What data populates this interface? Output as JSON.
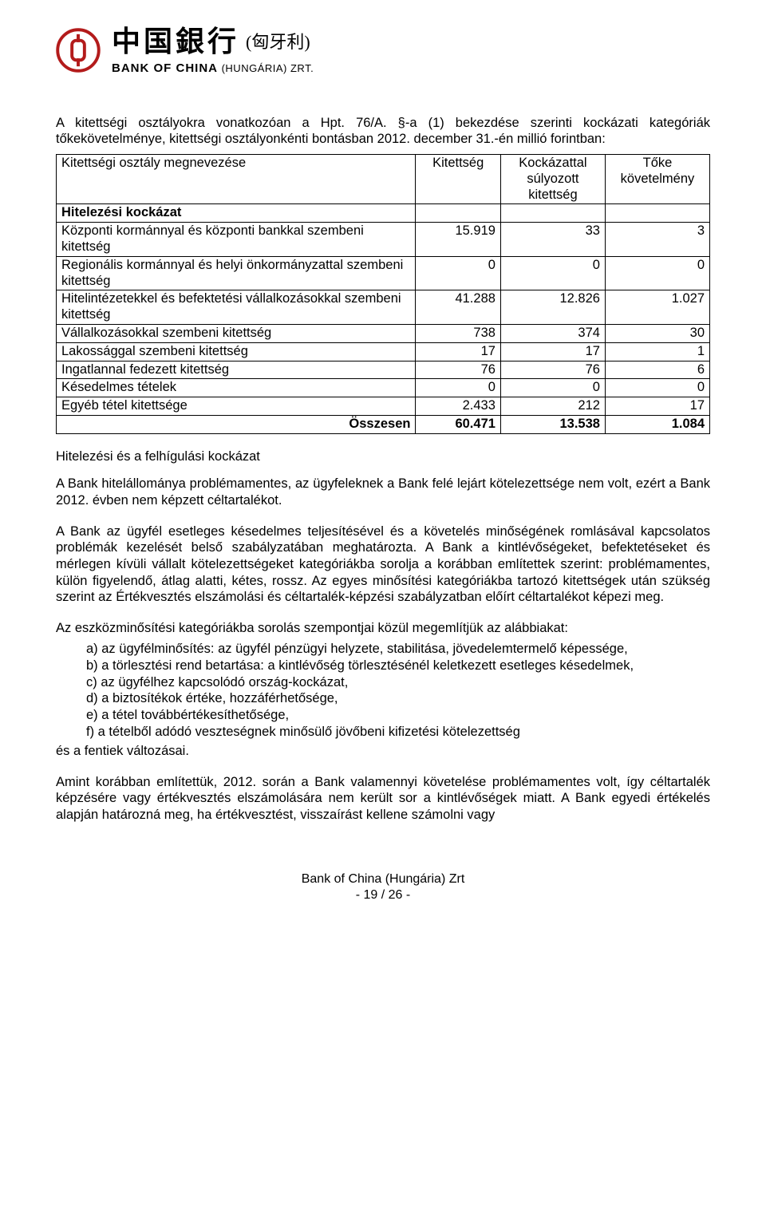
{
  "logo": {
    "cn": "中国銀行",
    "sub_cn": "(匈牙利)",
    "en": "BANK OF CHINA",
    "en_sub": "(HUNGÁRIA) ZRT."
  },
  "intro_para": "A kitettségi osztályokra vonatkozóan a Hpt. 76/A. §-a (1) bekezdése szerinti kockázati kategóriák tőkekövetelménye, kitettségi osztályonkénti bontásban 2012. december 31.-én millió forintban:",
  "table": {
    "columns": [
      "Kitettségi osztály megnevezése",
      "Kitettség",
      "Kockázattal súlyozott kitettség",
      "Tőke követelmény"
    ],
    "rows": [
      {
        "label": "Hitelezési kockázat",
        "bold": true,
        "c1": "",
        "c2": "",
        "c3": ""
      },
      {
        "label": "Központi kormánnyal és központi bankkal szembeni kitettség",
        "c1": "15.919",
        "c2": "33",
        "c3": "3"
      },
      {
        "label": "Regionális kormánnyal és helyi önkormányzattal szembeni kitettség",
        "c1": "0",
        "c2": "0",
        "c3": "0"
      },
      {
        "label": "Hitelintézetekkel és befektetési vállalkozásokkal szembeni kitettség",
        "c1": "41.288",
        "c2": "12.826",
        "c3": "1.027"
      },
      {
        "label": "Vállalkozásokkal szembeni kitettség",
        "c1": "738",
        "c2": "374",
        "c3": "30"
      },
      {
        "label": "Lakossággal szembeni kitettség",
        "c1": "17",
        "c2": "17",
        "c3": "1"
      },
      {
        "label": "Ingatlannal fedezett kitettség",
        "c1": "76",
        "c2": "76",
        "c3": "6"
      },
      {
        "label": "Késedelmes tételek",
        "c1": "0",
        "c2": "0",
        "c3": "0"
      },
      {
        "label": "Egyéb tétel kitettsége",
        "c1": "2.433",
        "c2": "212",
        "c3": "17"
      },
      {
        "label": "Összesen",
        "bold": true,
        "align": "right",
        "c1": "60.471",
        "c2": "13.538",
        "c3": "1.084"
      }
    ],
    "col_widths": [
      "55%",
      "13%",
      "16%",
      "16%"
    ]
  },
  "section_title": "Hitelezési és a felhígulási kockázat",
  "p1": "A Bank hitelállománya problémamentes, az ügyfeleknek a Bank felé lejárt kötelezettsége nem volt, ezért a Bank 2012. évben nem képzett céltartalékot.",
  "p2": "A Bank az ügyfél esetleges késedelmes teljesítésével és a követelés minőségének romlásával kapcsolatos problémák kezelését belső szabályzatában meghatározta. A Bank a kintlévőségeket, befektetéseket és mérlegen kívüli vállalt kötelezettségeket kategóriákba sorolja a korábban említettek szerint: problémamentes, külön figyelendő, átlag alatti, kétes, rossz. Az egyes minősítési kategóriákba tartozó kitettségek után szükség szerint az Értékvesztés elszámolási és céltartalék-képzési szabályzatban előírt céltartalékot képezi meg.",
  "p3_intro": "Az eszközminősítési kategóriákba sorolás szempontjai közül megemlítjük az alábbiakat:",
  "list": [
    "a) az ügyfélminősítés: az ügyfél pénzügyi helyzete, stabilitása, jövedelemtermelő képessége,",
    "b) a törlesztési rend betartása: a kintlévőség törlesztésénél keletkezett esetleges késedelmek,",
    "c) az ügyfélhez kapcsolódó ország-kockázat,",
    "d) a biztosítékok értéke, hozzáférhetősége,",
    "e) a tétel továbbértékesíthetősége,",
    "f) a tételből adódó veszteségnek minősülő jövőbeni kifizetési kötelezettség"
  ],
  "p3_out": "és a fentiek változásai.",
  "p4": "Amint korábban említettük, 2012. során a Bank valamennyi követelése problémamentes volt, így céltartalék képzésére vagy értékvesztés elszámolására nem került sor a kintlévőségek miatt. A Bank egyedi értékelés alapján határozná meg, ha értékvesztést, visszaírást kellene számolni vagy",
  "footer": {
    "line1": "Bank of China (Hungária) Zrt",
    "line2": "- 19 / 26 -"
  }
}
